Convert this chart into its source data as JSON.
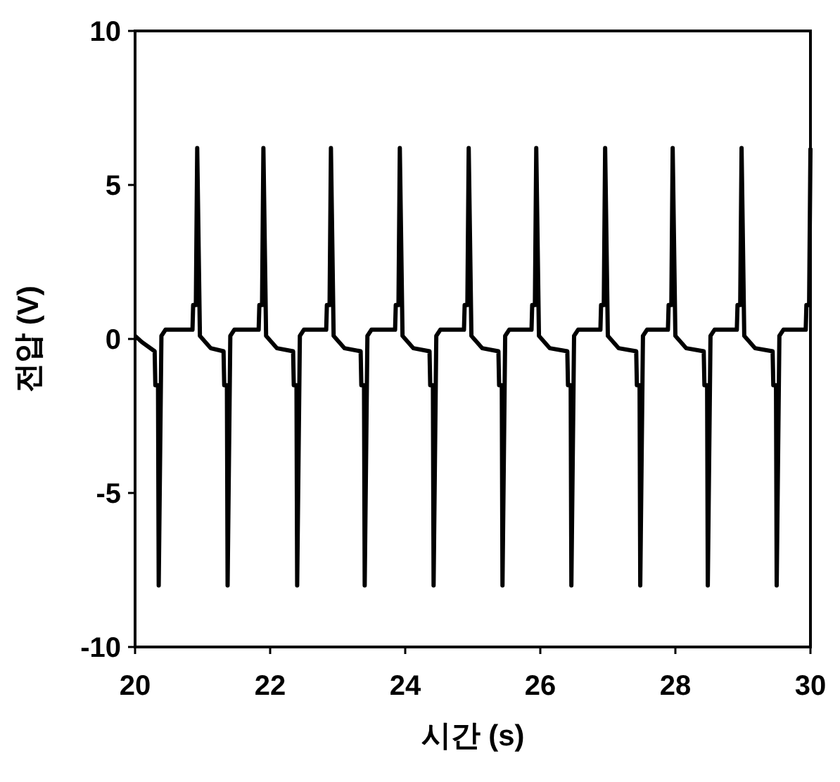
{
  "chart_data": {
    "type": "line",
    "xlabel": "시간 (s)",
    "ylabel": "전압 (V)",
    "xlim": [
      20,
      30
    ],
    "ylim": [
      -10,
      10
    ],
    "xticks": [
      20,
      22,
      24,
      26,
      28,
      30
    ],
    "yticks": [
      -10,
      -5,
      0,
      5,
      10
    ],
    "grid": false,
    "marker": "none",
    "line_style": "solid",
    "series": [
      {
        "color": "#000000",
        "x": [
          20.0,
          20.1,
          20.29,
          20.3,
          20.34,
          20.35,
          20.39,
          20.45,
          20.85,
          20.86,
          20.9,
          20.92,
          20.96,
          21.12,
          21.31,
          21.32,
          21.36,
          21.37,
          21.41,
          21.47,
          21.83,
          21.84,
          21.88,
          21.9,
          21.94,
          22.1,
          22.34,
          22.35,
          22.39,
          22.4,
          22.44,
          22.5,
          22.83,
          22.84,
          22.88,
          22.9,
          22.94,
          23.1,
          23.34,
          23.35,
          23.39,
          23.4,
          23.44,
          23.5,
          23.85,
          23.86,
          23.9,
          23.92,
          23.96,
          24.12,
          24.36,
          24.37,
          24.41,
          24.42,
          24.46,
          24.52,
          24.87,
          24.88,
          24.92,
          24.94,
          24.98,
          25.14,
          25.38,
          25.39,
          25.43,
          25.44,
          25.48,
          25.54,
          25.87,
          25.88,
          25.92,
          25.94,
          25.98,
          26.14,
          26.4,
          26.41,
          26.45,
          26.46,
          26.5,
          26.56,
          26.89,
          26.9,
          26.94,
          26.96,
          27.0,
          27.16,
          27.42,
          27.43,
          27.47,
          27.48,
          27.52,
          27.58,
          27.89,
          27.9,
          27.94,
          27.96,
          28.0,
          28.16,
          28.42,
          28.43,
          28.47,
          28.48,
          28.52,
          28.58,
          28.91,
          28.92,
          28.96,
          28.98,
          29.02,
          29.18,
          29.44,
          29.45,
          29.49,
          29.5,
          29.54,
          29.6,
          29.93,
          29.94,
          29.98,
          30.0
        ],
        "values": [
          0.1,
          -0.1,
          -0.4,
          -1.5,
          -1.5,
          -8,
          0.1,
          0.3,
          0.3,
          1.1,
          1.1,
          6.2,
          0.1,
          -0.3,
          -0.4,
          -1.5,
          -1.5,
          -8,
          0.1,
          0.3,
          0.3,
          1.1,
          1.1,
          6.2,
          0.1,
          -0.3,
          -0.4,
          -1.5,
          -1.5,
          -8,
          0.1,
          0.3,
          0.3,
          1.1,
          1.1,
          6.2,
          0.1,
          -0.3,
          -0.4,
          -1.5,
          -1.5,
          -8,
          0.1,
          0.3,
          0.3,
          1.1,
          1.1,
          6.2,
          0.1,
          -0.3,
          -0.4,
          -1.5,
          -1.5,
          -8,
          0.1,
          0.3,
          0.3,
          1.1,
          1.1,
          6.2,
          0.1,
          -0.3,
          -0.4,
          -1.5,
          -1.5,
          -8,
          0.1,
          0.3,
          0.3,
          1.1,
          1.1,
          6.2,
          0.1,
          -0.3,
          -0.4,
          -1.5,
          -1.5,
          -8,
          0.1,
          0.3,
          0.3,
          1.1,
          1.1,
          6.2,
          0.1,
          -0.3,
          -0.4,
          -1.5,
          -1.5,
          -8,
          0.1,
          0.3,
          0.3,
          1.1,
          1.1,
          6.2,
          0.1,
          -0.3,
          -0.4,
          -1.5,
          -1.5,
          -8,
          0.1,
          0.3,
          0.3,
          1.1,
          1.1,
          6.2,
          0.1,
          -0.3,
          -0.4,
          -1.5,
          -1.5,
          -8,
          0.1,
          0.3,
          0.3,
          1.1,
          1.1,
          6.2
        ]
      }
    ]
  }
}
